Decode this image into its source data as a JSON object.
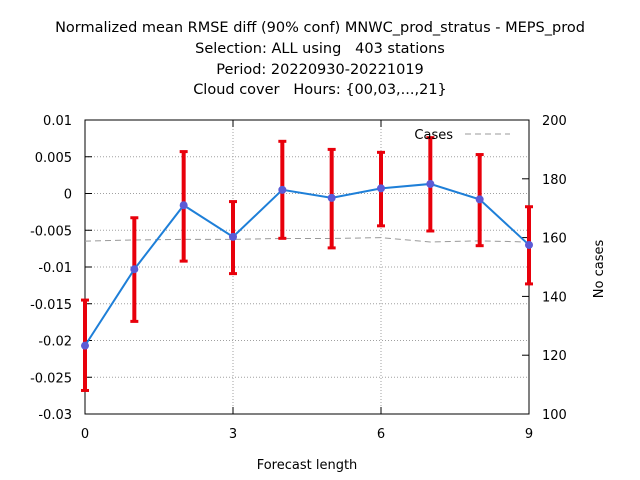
{
  "title_lines": [
    "Normalized mean RMSE diff (90% conf) MNWC_prod_stratus - MEPS_prod",
    "Selection: ALL using   403 stations",
    "Period: 20220930-20221019",
    "Cloud cover   Hours: {00,03,...,21}"
  ],
  "chart_data": {
    "type": "line",
    "xlabel": "Forecast length",
    "ylabel": "",
    "y2label": "No cases",
    "xlim": [
      0,
      9
    ],
    "ylim": [
      -0.03,
      0.01
    ],
    "y2lim": [
      100,
      200
    ],
    "xticks": [
      0,
      3,
      6,
      9
    ],
    "yticks": [
      -0.03,
      -0.025,
      -0.02,
      -0.015,
      -0.01,
      -0.005,
      0,
      0.005,
      0.01
    ],
    "ytick_labels": [
      "-0.03",
      "-0.025",
      "-0.02",
      "-0.015",
      "-0.01",
      "-0.005",
      "0",
      "0.005",
      "0.01"
    ],
    "y2ticks": [
      100,
      120,
      140,
      160,
      180,
      200
    ],
    "grid": true,
    "legend": "top-right",
    "x": [
      0,
      1,
      2,
      3,
      4,
      5,
      6,
      7,
      8,
      9
    ],
    "series": [
      {
        "name": "",
        "axis": "left",
        "values": [
          -0.0207,
          -0.0103,
          -0.0016,
          -0.0059,
          0.0005,
          -0.0006,
          0.0007,
          0.0013,
          -0.0008,
          -0.007
        ],
        "error_low": [
          -0.0268,
          -0.0174,
          -0.0092,
          -0.0109,
          -0.0061,
          -0.0074,
          -0.0044,
          -0.0051,
          -0.0071,
          -0.0123
        ],
        "error_high": [
          -0.0145,
          -0.0033,
          0.0057,
          -0.0011,
          0.0071,
          0.006,
          0.0056,
          0.0076,
          0.0053,
          -0.0018
        ],
        "color": "#1e7fd8",
        "marker_color": "#5b5bd6",
        "error_color": "#e8000b"
      },
      {
        "name": "Cases",
        "axis": "right",
        "style": "dashed",
        "values": [
          158.8,
          159.2,
          159.4,
          159.4,
          159.7,
          159.7,
          160.0,
          158.5,
          158.9,
          158.5
        ],
        "color": "#999999"
      }
    ]
  }
}
